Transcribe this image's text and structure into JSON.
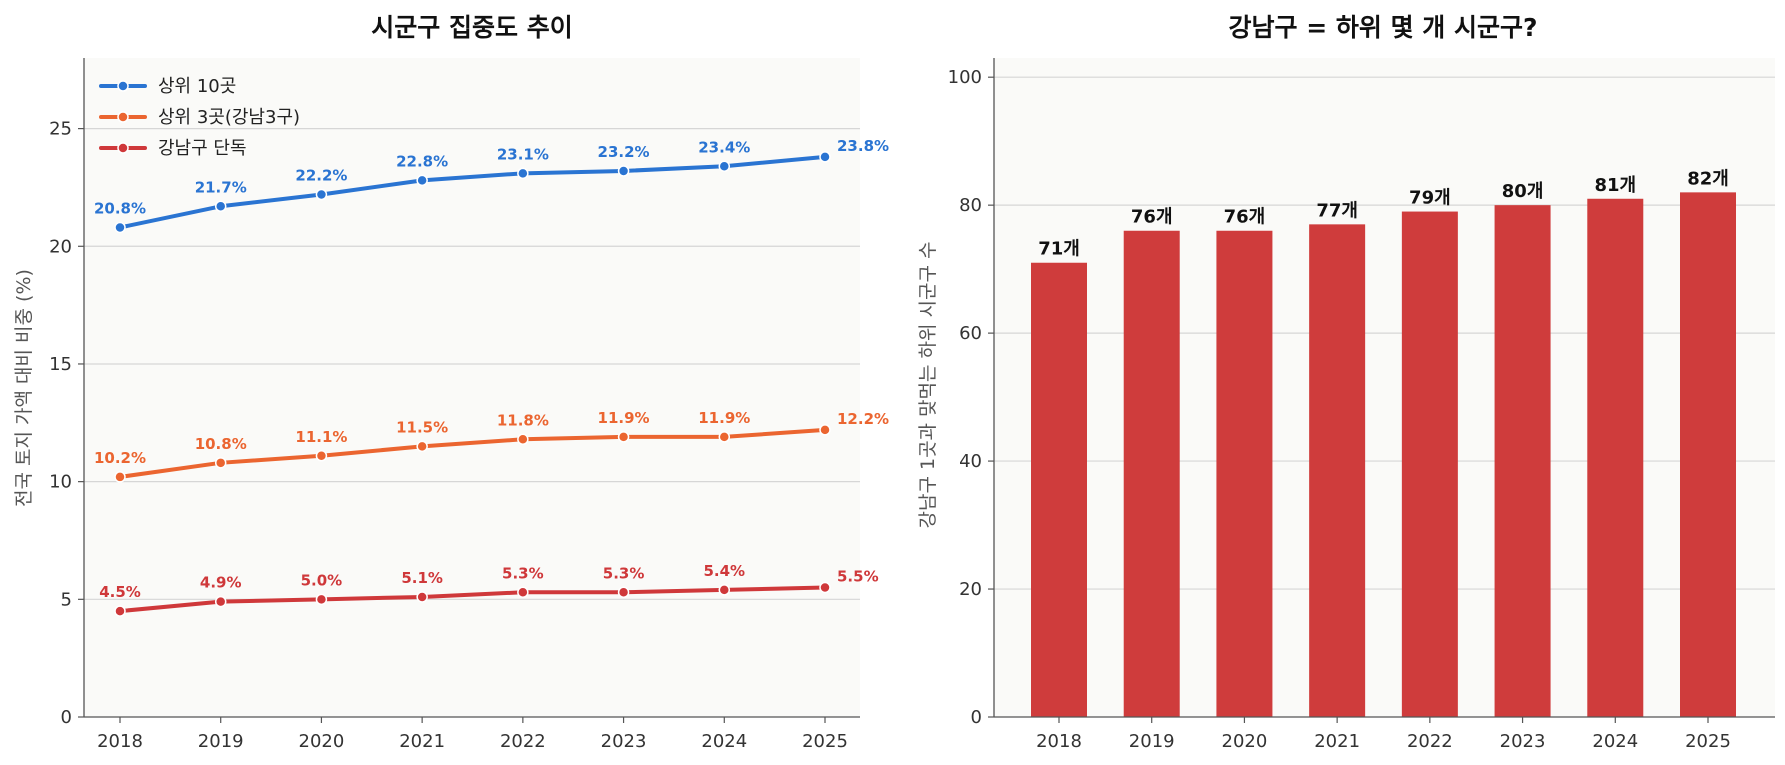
{
  "chart_data": [
    {
      "type": "line",
      "title": "시군구 집중도 추이",
      "xlabel": "",
      "ylabel": "전국 토지 가액 대비 비중 (%)",
      "x": [
        "2018",
        "2019",
        "2020",
        "2021",
        "2022",
        "2023",
        "2024",
        "2025"
      ],
      "ylim": [
        0,
        28
      ],
      "yticks": [
        "0",
        "5",
        "10",
        "15",
        "20",
        "25"
      ],
      "grid": "horizontal",
      "legend_position": "top-left",
      "series": [
        {
          "name": "상위 10곳",
          "color": "#2a74d2",
          "values": [
            20.8,
            21.7,
            22.2,
            22.8,
            23.1,
            23.2,
            23.4,
            23.8
          ],
          "labels": [
            "20.8%",
            "21.7%",
            "22.2%",
            "22.8%",
            "23.1%",
            "23.2%",
            "23.4%",
            "23.8%"
          ]
        },
        {
          "name": "상위 3곳(강남3구)",
          "color": "#eb6530",
          "values": [
            10.2,
            10.8,
            11.1,
            11.5,
            11.8,
            11.9,
            11.9,
            12.2
          ],
          "labels": [
            "10.2%",
            "10.8%",
            "11.1%",
            "11.5%",
            "11.8%",
            "11.9%",
            "11.9%",
            "12.2%"
          ]
        },
        {
          "name": "강남구 단독",
          "color": "#cf383a",
          "values": [
            4.5,
            4.9,
            5.0,
            5.1,
            5.3,
            5.3,
            5.4,
            5.5
          ],
          "labels": [
            "4.5%",
            "4.9%",
            "5.0%",
            "5.1%",
            "5.3%",
            "5.3%",
            "5.4%",
            "5.5%"
          ]
        }
      ]
    },
    {
      "type": "bar",
      "title": "강남구 = 하위 몇 개 시군구?",
      "xlabel": "",
      "ylabel": "강남구 1곳과 맞먹는 하위 시군구 수",
      "categories": [
        "2018",
        "2019",
        "2020",
        "2021",
        "2022",
        "2023",
        "2024",
        "2025"
      ],
      "values": [
        71,
        76,
        76,
        77,
        79,
        80,
        81,
        82
      ],
      "labels": [
        "71개",
        "76개",
        "76개",
        "77개",
        "79개",
        "80개",
        "81개",
        "82개"
      ],
      "ylim": [
        0,
        103
      ],
      "yticks": [
        "0",
        "20",
        "40",
        "60",
        "80",
        "100"
      ],
      "grid": "horizontal",
      "color": "#cf3c3c"
    }
  ],
  "colors": {
    "plot_background": "#fafaf8",
    "gridline": "#d6d6d6",
    "axis": "#555555"
  }
}
